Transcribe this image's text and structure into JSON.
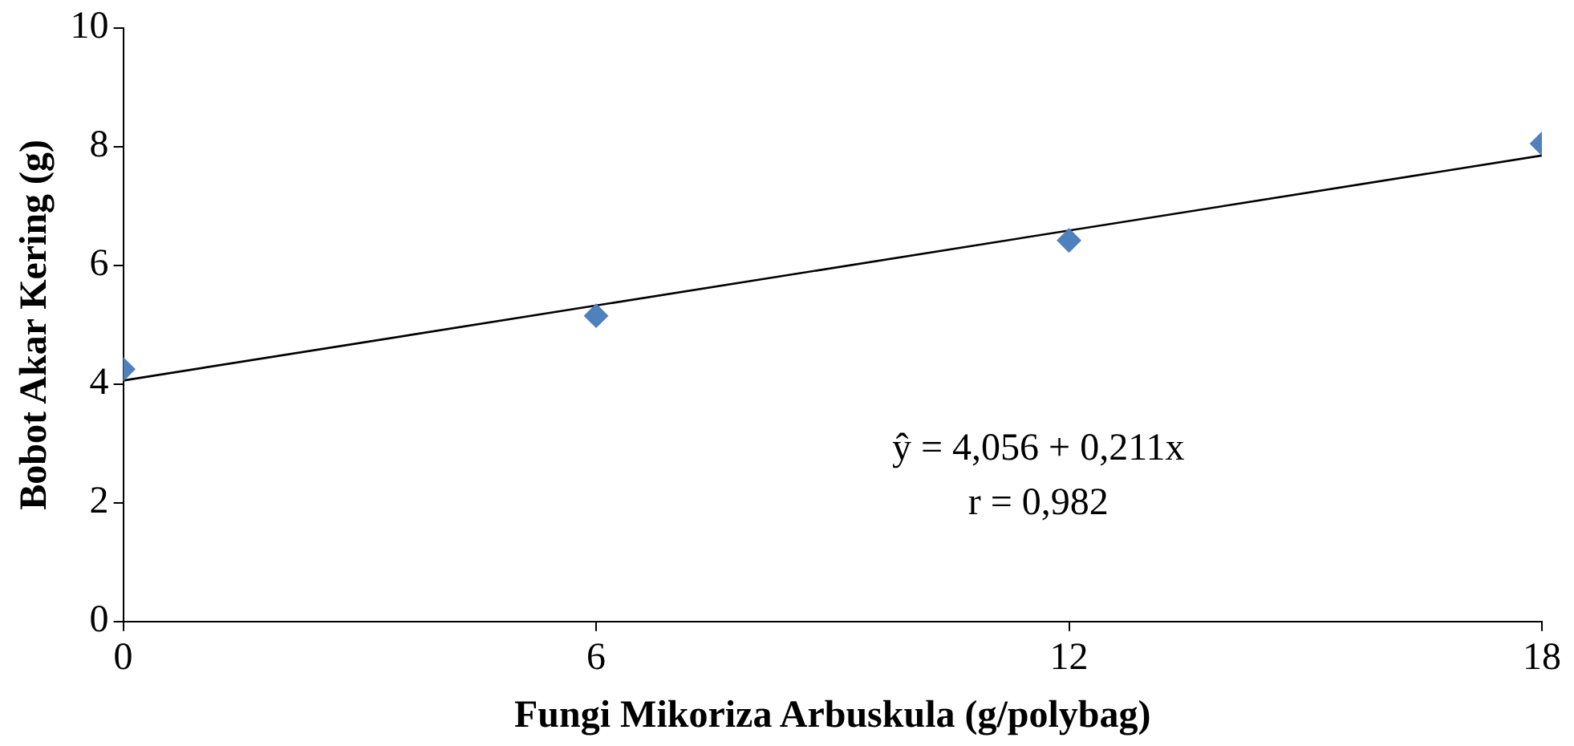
{
  "chart_data": {
    "type": "scatter",
    "xlabel": "Fungi Mikoriza Arbuskula (g/polybag)",
    "ylabel": "Bobot Akar Kering (g)",
    "x": [
      0,
      6,
      12,
      18
    ],
    "series": [
      {
        "color": "#4f81bd",
        "values": [
          4.25,
          5.15,
          6.42,
          8.05
        ],
        "marker": "diamond"
      },
      {
        "type": "line",
        "color": "#000000",
        "x": [
          0,
          18
        ],
        "values": [
          4.06,
          7.85
        ],
        "marker": "none"
      }
    ],
    "xlim": [
      0,
      18
    ],
    "xticks": [
      0,
      6,
      12,
      18
    ],
    "ylim": [
      0,
      10
    ],
    "yticks": [
      0,
      2,
      4,
      6,
      8,
      10
    ],
    "grid": false,
    "legend": false,
    "annotations": [
      "ŷ = 4,056 + 0,211x",
      "r = 0,982"
    ]
  }
}
